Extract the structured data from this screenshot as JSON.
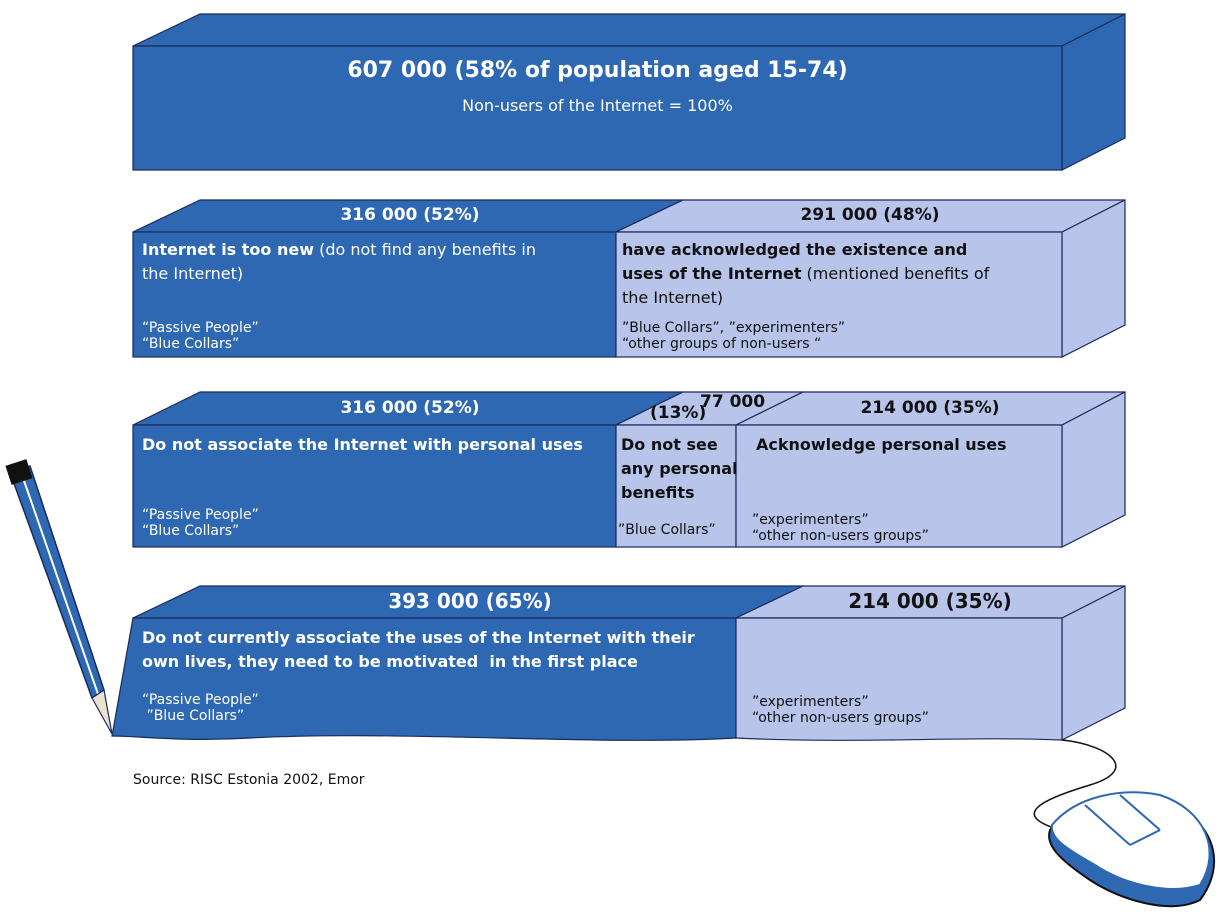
{
  "top": {
    "title": "607 000 (58% of population aged 15-74)",
    "subtitle": "Non-users of the Internet = 100%"
  },
  "rows": [
    {
      "segments": [
        {
          "header": "316 000 (52%)",
          "title": "Internet is too new",
          "text": " (do not find any benefits in the Internet)",
          "groups": [
            "“Passive People”",
            "“Blue Collars”"
          ]
        },
        {
          "header": "291 000 (48%)",
          "title": "have acknowledged the existence and uses of the Internet",
          "text": " (mentioned benefits of the Internet)",
          "groups": [
            "”Blue Collars”, ”experimenters”",
            "“other groups of non-users “"
          ]
        }
      ]
    },
    {
      "segments": [
        {
          "header": "316 000 (52%)",
          "title": "Do not associate the Internet with personal uses",
          "groups": [
            "“Passive People”",
            "“Blue Collars”"
          ]
        },
        {
          "header": "77 000",
          "share": "(13%)",
          "title": "Do not see any personal benefits",
          "groups": [
            "”Blue Collars”"
          ]
        },
        {
          "header": "214 000 (35%)",
          "title": "Acknowledge personal uses",
          "groups": [
            "”experimenters”",
            "“other non-users groups”"
          ]
        }
      ]
    },
    {
      "segments": [
        {
          "header": "393 000 (65%)",
          "title": "Do not currently associate the uses of the Internet with their own lives, they need to be motivated  in the first place",
          "groups": [
            "“Passive People”",
            " ”Blue Collars”"
          ]
        },
        {
          "header": "214 000 (35%)",
          "groups": [
            "”experimenters”",
            "“other non-users groups”"
          ]
        }
      ]
    }
  ],
  "source": "Source: RISC Estonia 2002, Emor"
}
